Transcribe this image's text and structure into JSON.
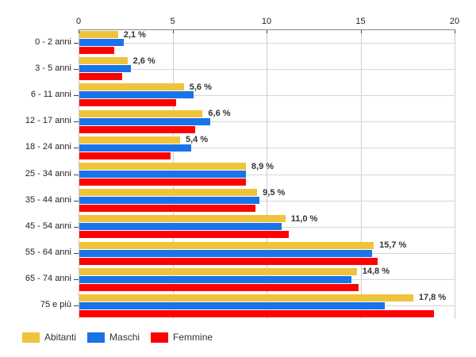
{
  "chart_data": {
    "type": "bar",
    "orientation": "horizontal",
    "title": "",
    "xlabel": "",
    "ylabel": "",
    "categories": [
      "0 - 2 anni",
      "3 - 5 anni",
      "6 - 11 anni",
      "12 - 17 anni",
      "18 - 24 anni",
      "25 - 34 anni",
      "35 - 44 anni",
      "45 - 54 anni",
      "55 - 64 anni",
      "65 - 74 anni",
      "75 e più"
    ],
    "series": [
      {
        "name": "Abitanti",
        "color": "#F0C33C",
        "values": [
          2.1,
          2.6,
          5.6,
          6.6,
          5.4,
          8.9,
          9.5,
          11.0,
          15.7,
          14.8,
          17.8
        ]
      },
      {
        "name": "Maschi",
        "color": "#1A73E8",
        "values": [
          2.4,
          2.8,
          6.1,
          7.0,
          6.0,
          8.9,
          9.6,
          10.8,
          15.6,
          14.5,
          16.3
        ]
      },
      {
        "name": "Femmine",
        "color": "#FF0000",
        "values": [
          1.9,
          2.3,
          5.2,
          6.2,
          4.9,
          8.9,
          9.4,
          11.2,
          15.9,
          14.9,
          18.9
        ]
      }
    ],
    "value_labels": [
      "2,1 %",
      "2,6 %",
      "5,6 %",
      "6,6 %",
      "5,4 %",
      "8,9 %",
      "9,5 %",
      "11,0 %",
      "15,7 %",
      "14,8 %",
      "17,8 %"
    ],
    "value_labels_on_series": "Abitanti",
    "axis": {
      "min": 0,
      "max": 20,
      "ticks": [
        0,
        5,
        10,
        15,
        20
      ],
      "tick_labels": [
        "0",
        "5",
        "10",
        "15",
        "20"
      ],
      "position": "top"
    },
    "grid": {
      "vertical": true,
      "horizontal_at_category_centers": true,
      "color": "#cccccc"
    },
    "legend": {
      "position": "bottom-left",
      "items": [
        "Abitanti",
        "Maschi",
        "Femmine"
      ]
    },
    "text_color": "#333333",
    "background_color": "#ffffff"
  }
}
